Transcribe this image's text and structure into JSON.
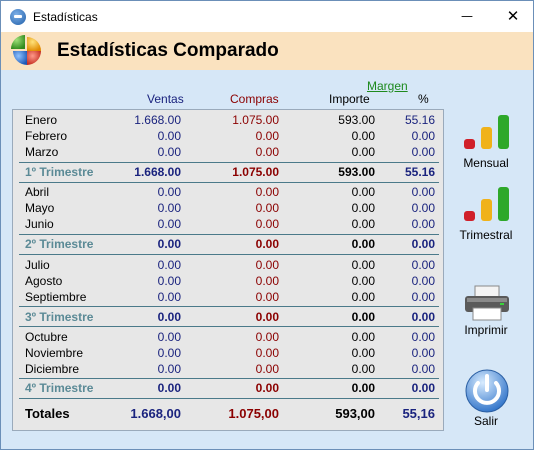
{
  "window": {
    "title": "Estadísticas",
    "minimize_symbol": "—",
    "close_symbol": "✕"
  },
  "header": {
    "title": "Estadísticas Comparado",
    "logo_icon": "pie-chart-icon"
  },
  "columns": {
    "ventas": "Ventas",
    "compras": "Compras",
    "importe": "Importe",
    "pct": "%",
    "margen": "Margen"
  },
  "colors": {
    "ventas": "#1a237e",
    "compras": "#8b0000",
    "importe": "#000000",
    "pct": "#1a237e",
    "trimestre": "#5b8a96"
  },
  "rows": [
    {
      "type": "month",
      "label": "Enero",
      "ventas": "1.668.00",
      "compras": "1.075.00",
      "importe": "593.00",
      "pct": "55.16"
    },
    {
      "type": "month",
      "label": "Febrero",
      "ventas": "0.00",
      "compras": "0.00",
      "importe": "0.00",
      "pct": "0.00"
    },
    {
      "type": "month",
      "label": "Marzo",
      "ventas": "0.00",
      "compras": "0.00",
      "importe": "0.00",
      "pct": "0.00"
    },
    {
      "type": "quarter",
      "label": "1º Trimestre",
      "ventas": "1.668.00",
      "compras": "1.075.00",
      "importe": "593.00",
      "pct": "55.16"
    },
    {
      "type": "month",
      "label": "Abril",
      "ventas": "0.00",
      "compras": "0.00",
      "importe": "0.00",
      "pct": "0.00"
    },
    {
      "type": "month",
      "label": "Mayo",
      "ventas": "0.00",
      "compras": "0.00",
      "importe": "0.00",
      "pct": "0.00"
    },
    {
      "type": "month",
      "label": "Junio",
      "ventas": "0.00",
      "compras": "0.00",
      "importe": "0.00",
      "pct": "0.00"
    },
    {
      "type": "quarter",
      "label": "2º Trimestre",
      "ventas": "0.00",
      "compras": "0.00",
      "importe": "0.00",
      "pct": "0.00"
    },
    {
      "type": "month",
      "label": "Julio",
      "ventas": "0.00",
      "compras": "0.00",
      "importe": "0.00",
      "pct": "0.00"
    },
    {
      "type": "month",
      "label": "Agosto",
      "ventas": "0.00",
      "compras": "0.00",
      "importe": "0.00",
      "pct": "0.00"
    },
    {
      "type": "month",
      "label": "Septiembre",
      "ventas": "0.00",
      "compras": "0.00",
      "importe": "0.00",
      "pct": "0.00"
    },
    {
      "type": "quarter",
      "label": "3º Trimestre",
      "ventas": "0.00",
      "compras": "0.00",
      "importe": "0.00",
      "pct": "0.00"
    },
    {
      "type": "month",
      "label": "Octubre",
      "ventas": "0.00",
      "compras": "0.00",
      "importe": "0.00",
      "pct": "0.00"
    },
    {
      "type": "month",
      "label": "Noviembre",
      "ventas": "0.00",
      "compras": "0.00",
      "importe": "0.00",
      "pct": "0.00"
    },
    {
      "type": "month",
      "label": "Diciembre",
      "ventas": "0.00",
      "compras": "0.00",
      "importe": "0.00",
      "pct": "0.00"
    },
    {
      "type": "quarter",
      "label": "4º Trimestre",
      "ventas": "0.00",
      "compras": "0.00",
      "importe": "0.00",
      "pct": "0.00"
    },
    {
      "type": "total",
      "label": "Totales",
      "ventas": "1.668,00",
      "compras": "1.075,00",
      "importe": "593,00",
      "pct": "55,16"
    }
  ],
  "sidebar": {
    "mensual": {
      "label": "Mensual",
      "icon": "bar-chart-icon"
    },
    "trimestral": {
      "label": "Trimestral",
      "icon": "bar-chart-icon"
    },
    "imprimir": {
      "label": "Imprimir",
      "icon": "printer-icon"
    },
    "salir": {
      "label": "Salir",
      "icon": "power-icon"
    }
  }
}
